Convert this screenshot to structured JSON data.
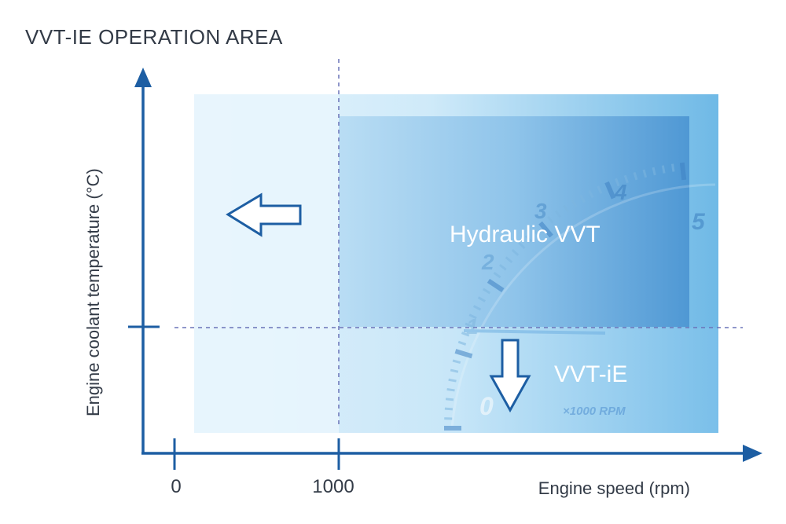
{
  "title": "VVT-IE OPERATION AREA",
  "axes": {
    "x_label": "Engine speed (rpm)",
    "y_label": "Engine coolant temperature (°C)",
    "x_ticks": [
      "0",
      "1000"
    ]
  },
  "regions": {
    "hydraulic": "Hydraulic VVT",
    "vvt_ie": "VVT-iE"
  },
  "gauge": {
    "numbers": [
      "0",
      "1",
      "2",
      "3",
      "4",
      "5"
    ],
    "unit": "×1000 RPM"
  },
  "colors": {
    "axis": "#1d5ea3",
    "title": "#333b47",
    "dashed": "#6a73b8",
    "region_light": "#dff0fb",
    "region_mid": "#bfe3f7",
    "region_dark": "#5aa6dd",
    "arrow_fill": "#ffffff"
  }
}
